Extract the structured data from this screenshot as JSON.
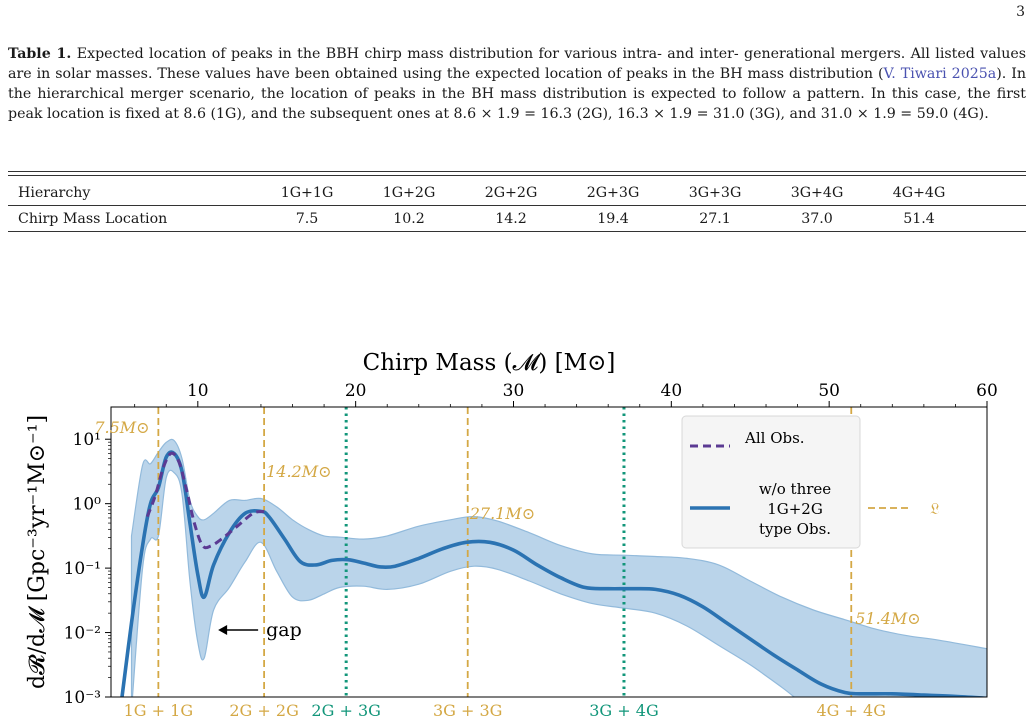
{
  "page_number": "3",
  "caption": {
    "label": "Table 1.",
    "text_before_cite": "Expected location of peaks in the BBH chirp mass distribution for various intra- and inter- generational mergers. All listed values are in solar masses. These values have been obtained using the expected location of peaks in the BH mass distribution (",
    "citation": "V. Tiwari 2025a",
    "text_after_cite": "). In the hierarchical merger scenario, the location of peaks in the BH mass distribution is expected to follow a pattern. In this case, the first peak location is fixed at 8.6 (1G), and the subsequent ones at 8.6 × 1.9 = 16.3 (2G), 16.3 × 1.9 = 31.0 (3G), and 31.0 × 1.9 = 59.0 (4G)."
  },
  "table": {
    "row_headers": [
      "Hierarchy",
      "Chirp Mass Location"
    ],
    "columns": [
      "1G+1G",
      "1G+2G",
      "2G+2G",
      "2G+3G",
      "3G+3G",
      "3G+4G",
      "4G+4G"
    ],
    "values": [
      "7.5",
      "10.2",
      "14.2",
      "19.4",
      "27.1",
      "37.0",
      "51.4"
    ]
  },
  "chart_data": {
    "type": "line",
    "xlabel": "Chirp Mass (𝓜) [M⊙]",
    "ylabel": "d𝓡/d𝓜 [Gpc⁻³yr⁻¹M⊙⁻¹]",
    "xlim": [
      4.5,
      60
    ],
    "ylim_log10": [
      -3,
      1.5
    ],
    "y_scale": "log",
    "xticks": [
      10,
      20,
      30,
      40,
      50,
      60
    ],
    "yticks": [
      "10¹",
      "10⁰",
      "10⁻¹",
      "10⁻²",
      "10⁻³"
    ],
    "legend": {
      "placement": "top-right",
      "entries": [
        "All Obs.",
        "w/o three",
        "1G+2G",
        "type Obs."
      ],
      "marker_label": "𝔏"
    },
    "colors": {
      "main": "#2b73b2",
      "band": "#b7d2e9",
      "band_edge": "#8db7da",
      "all_obs": "#5b3a93",
      "gold": "#d4a845",
      "green": "#12967a"
    },
    "series": [
      {
        "name": "w/o three 1G+2G type Obs.",
        "x": [
          5.2,
          5.8,
          6.5,
          7.0,
          7.5,
          8.0,
          8.5,
          9.0,
          9.5,
          10.0,
          10.4,
          11.0,
          12.0,
          13.0,
          14.0,
          14.5,
          15.5,
          16.5,
          17.5,
          18.5,
          19.5,
          20.5,
          21.5,
          22.5,
          24.0,
          25.5,
          27.0,
          28.5,
          30.0,
          31.5,
          33.0,
          34.5,
          36.0,
          37.5,
          39.0,
          40.5,
          42.0,
          43.5,
          45.0,
          46.5,
          48.0,
          49.5,
          51.0,
          52.0,
          54.0,
          56.0,
          58.0,
          60.0
        ],
        "log10y": [
          -3.0,
          -1.85,
          -0.65,
          0.0,
          0.25,
          0.72,
          0.78,
          0.5,
          -0.3,
          -1.1,
          -1.45,
          -0.95,
          -0.45,
          -0.15,
          -0.12,
          -0.2,
          -0.55,
          -0.9,
          -0.95,
          -0.88,
          -0.87,
          -0.92,
          -0.98,
          -0.97,
          -0.85,
          -0.7,
          -0.6,
          -0.6,
          -0.72,
          -0.95,
          -1.15,
          -1.3,
          -1.32,
          -1.32,
          -1.33,
          -1.42,
          -1.6,
          -1.85,
          -2.1,
          -2.35,
          -2.58,
          -2.8,
          -2.93,
          -2.95,
          -2.95,
          -2.97,
          -2.99,
          -3.02
        ]
      },
      {
        "name": "All Obs.",
        "x": [
          6.8,
          7.3,
          7.8,
          8.3,
          8.8,
          9.3,
          9.8,
          10.3,
          10.8,
          11.5,
          12.5,
          13.5,
          14.2
        ],
        "log10y": [
          -0.2,
          0.12,
          0.55,
          0.78,
          0.65,
          0.2,
          -0.32,
          -0.65,
          -0.66,
          -0.55,
          -0.35,
          -0.15,
          -0.12
        ]
      }
    ],
    "band": {
      "x": [
        5.8,
        6.5,
        7.0,
        7.5,
        8.0,
        8.5,
        9.0,
        9.5,
        10.0,
        10.4,
        11.0,
        12.0,
        13.0,
        14.0,
        15.0,
        16.0,
        17.0,
        18.0,
        19.0,
        20.5,
        22.0,
        24.0,
        26.0,
        27.5,
        29.0,
        31.0,
        33.0,
        35.0,
        37.0,
        39.0,
        41.0,
        43.0,
        45.0,
        47.0,
        49.0,
        51.0,
        53.0,
        55.0,
        57.0,
        60.0
      ],
      "upper": [
        -0.5,
        0.6,
        0.62,
        0.8,
        0.95,
        0.98,
        0.7,
        0.05,
        -0.2,
        -0.25,
        -0.15,
        0.05,
        0.05,
        0.08,
        -0.05,
        -0.25,
        -0.4,
        -0.5,
        -0.52,
        -0.55,
        -0.5,
        -0.35,
        -0.25,
        -0.2,
        -0.27,
        -0.45,
        -0.65,
        -0.78,
        -0.8,
        -0.82,
        -0.85,
        -0.95,
        -1.2,
        -1.45,
        -1.65,
        -1.8,
        -1.95,
        -2.05,
        -2.12,
        -2.25
      ],
      "lower": [
        -3.2,
        -1.0,
        -0.55,
        -0.5,
        0.4,
        0.48,
        0.15,
        -1.2,
        -2.15,
        -2.4,
        -1.65,
        -1.3,
        -0.9,
        -0.6,
        -1.05,
        -1.45,
        -1.5,
        -1.4,
        -1.3,
        -1.28,
        -1.33,
        -1.25,
        -1.05,
        -0.97,
        -1.02,
        -1.2,
        -1.4,
        -1.55,
        -1.62,
        -1.7,
        -1.9,
        -2.2,
        -2.5,
        -2.85,
        -3.2,
        -3.3,
        -3.3,
        -3.3,
        -3.3,
        -3.3
      ]
    },
    "vlines": [
      {
        "x": 7.5,
        "style": "gold",
        "top_label": "7.5M⊙",
        "bottom_label": "1G + 1G"
      },
      {
        "x": 14.2,
        "style": "gold",
        "top_label": "14.2M⊙",
        "bottom_label": "2G + 2G"
      },
      {
        "x": 19.4,
        "style": "green",
        "top_label": "",
        "bottom_label": "2G + 3G"
      },
      {
        "x": 27.1,
        "style": "gold",
        "top_label": "27.1M⊙",
        "bottom_label": "3G + 3G"
      },
      {
        "x": 37.0,
        "style": "green",
        "top_label": "",
        "bottom_label": "3G + 4G"
      },
      {
        "x": 51.4,
        "style": "gold",
        "top_label": "51.4M⊙",
        "bottom_label": "4G + 4G"
      }
    ],
    "annotation": {
      "text": "gap",
      "arrow_to_x": 10.4
    }
  }
}
